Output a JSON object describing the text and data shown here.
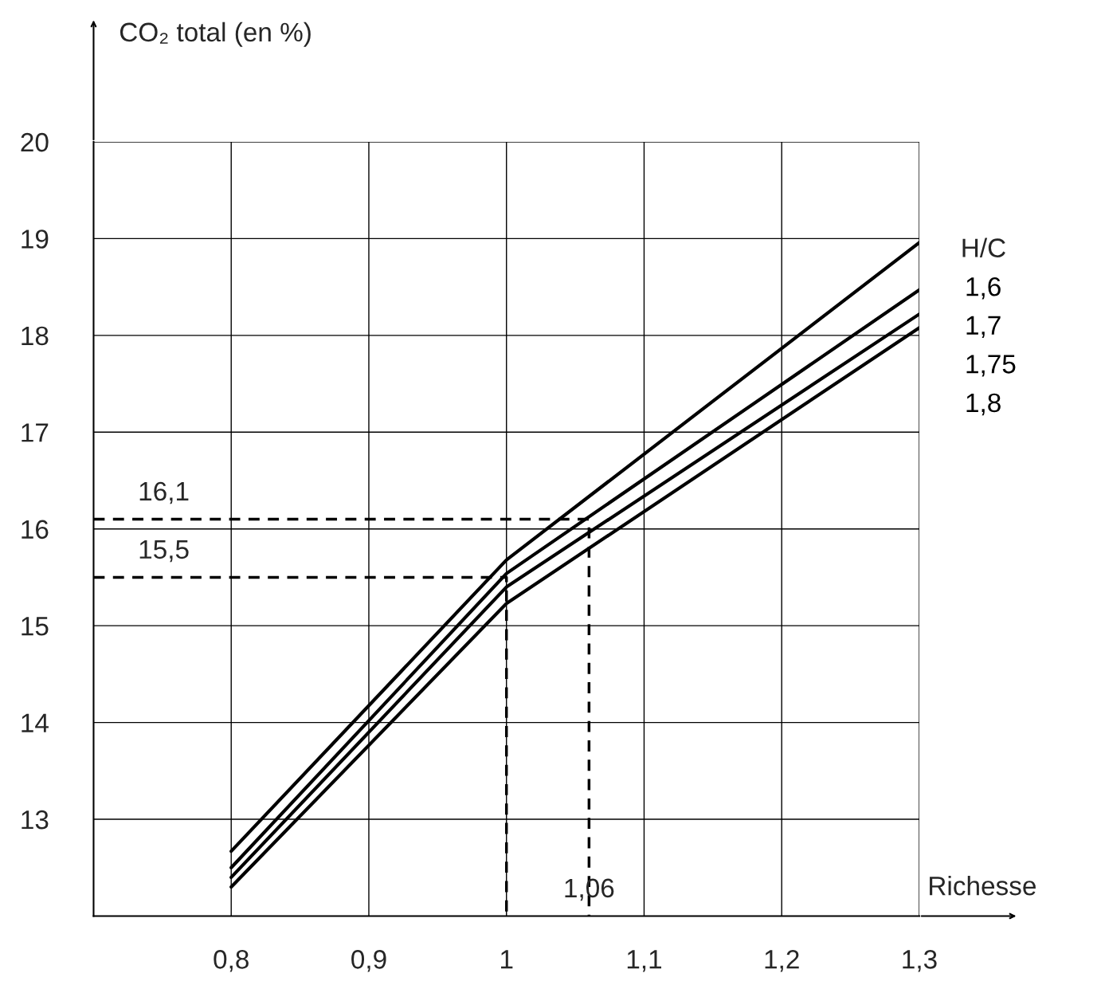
{
  "chart_data": {
    "type": "line",
    "ylabel": "CO₂ total (en %)",
    "xlabel": "Richesse",
    "legend_title": "H/C",
    "xlim": [
      0.7,
      1.3
    ],
    "ylim": [
      12,
      20
    ],
    "xticks": [
      {
        "value": 0.8,
        "label": "0,8"
      },
      {
        "value": 0.9,
        "label": "0,9"
      },
      1,
      {
        "value": 1.1,
        "label": "1,1"
      },
      {
        "value": 1.2,
        "label": "1,2"
      },
      {
        "value": 1.3,
        "label": "1,3"
      }
    ],
    "yticks": [
      13,
      14,
      15,
      16,
      17,
      18,
      19,
      20
    ],
    "grid": true,
    "legend": "right",
    "line_style": "solid",
    "marker": "none",
    "series": [
      {
        "name": "1,6",
        "color": "#000000",
        "x": [
          0.8,
          1.0,
          1.3
        ],
        "values": [
          12.67,
          15.68,
          18.96
        ]
      },
      {
        "name": "1,7",
        "color": "#000000",
        "x": [
          0.8,
          1.0,
          1.3
        ],
        "values": [
          12.5,
          15.54,
          18.47
        ]
      },
      {
        "name": "1,75",
        "color": "#000000",
        "x": [
          0.8,
          1.0,
          1.3
        ],
        "values": [
          12.4,
          15.4,
          18.22
        ]
      },
      {
        "name": "1,8",
        "color": "#000000",
        "x": [
          0.8,
          1.0,
          1.3
        ],
        "values": [
          12.3,
          15.23,
          18.08
        ]
      },
      {
        "color": "#000000",
        "line_style": "dashed",
        "x": [
          0.7,
          1.06,
          1.06
        ],
        "values": [
          16.1,
          16.1,
          12
        ]
      },
      {
        "color": "#000000",
        "line_style": "dashed",
        "x": [
          0.7,
          1.0,
          1.0
        ],
        "values": [
          15.5,
          15.5,
          12
        ]
      }
    ],
    "annotations": [
      {
        "text": "16,1",
        "y": 16.1
      },
      {
        "text": "15,5",
        "y": 15.5
      },
      {
        "text": "1,06",
        "x": 1.06
      }
    ]
  }
}
